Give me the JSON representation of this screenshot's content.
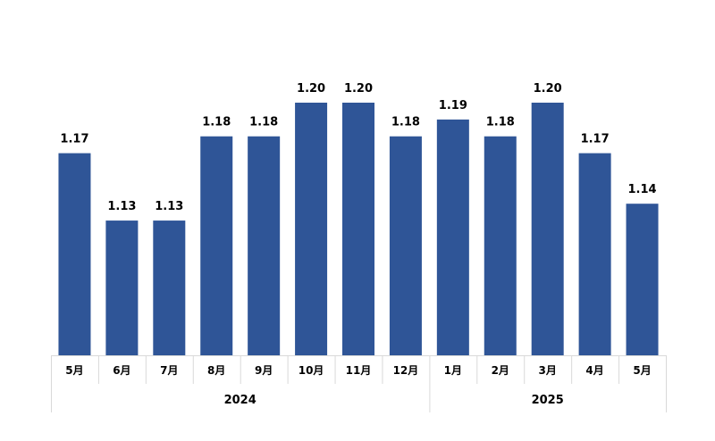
{
  "chart_data": {
    "type": "bar",
    "categories": [
      "5月",
      "6月",
      "7月",
      "8月",
      "9月",
      "10月",
      "11月",
      "12月",
      "1月",
      "2月",
      "3月",
      "4月",
      "5月"
    ],
    "values": [
      1.17,
      1.13,
      1.13,
      1.18,
      1.18,
      1.2,
      1.2,
      1.18,
      1.19,
      1.18,
      1.2,
      1.17,
      1.14
    ],
    "value_labels": [
      "1.17",
      "1.13",
      "1.13",
      "1.18",
      "1.18",
      "1.20",
      "1.20",
      "1.18",
      "1.19",
      "1.18",
      "1.20",
      "1.17",
      "1.14"
    ],
    "groups": [
      {
        "label": "2024",
        "count": 8
      },
      {
        "label": "2025",
        "count": 5
      }
    ],
    "ylim": [
      1.05,
      1.2
    ],
    "bar_color": "#2F5597",
    "grid": false,
    "legend": "none"
  }
}
